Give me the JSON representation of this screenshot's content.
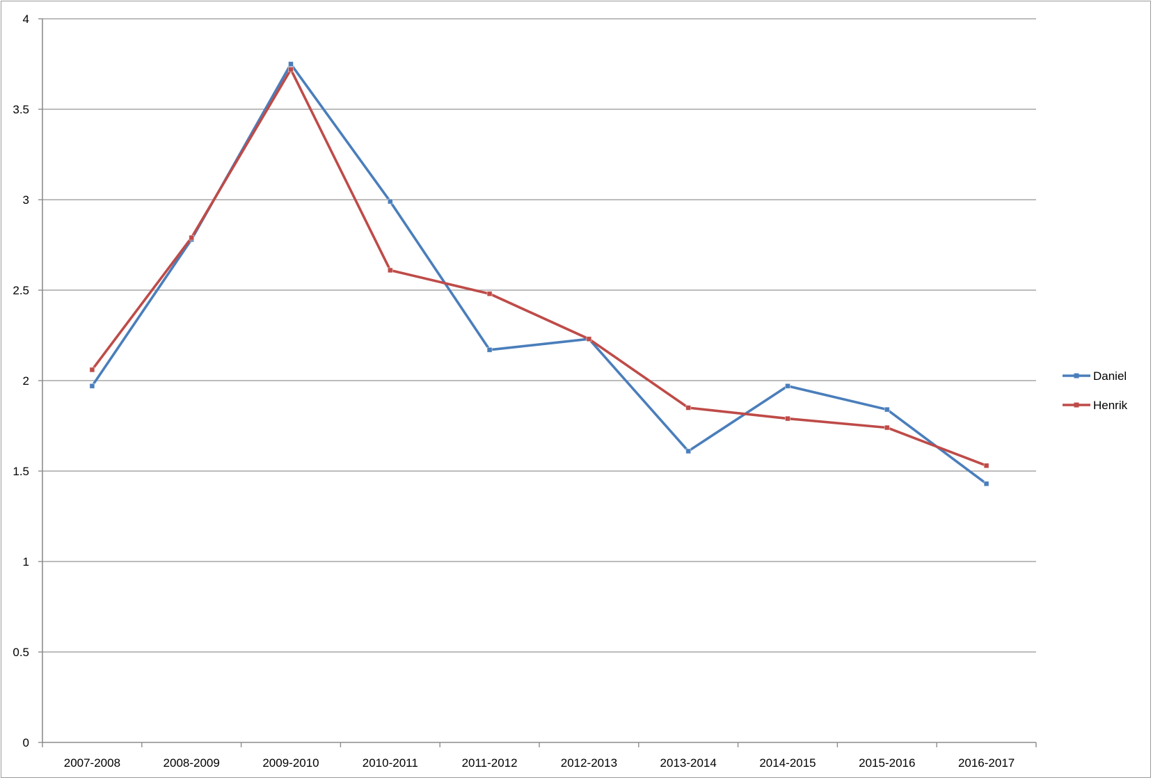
{
  "chart_data": {
    "type": "line",
    "title": "",
    "xlabel": "",
    "ylabel": "",
    "categories": [
      "2007-2008",
      "2008-2009",
      "2009-2010",
      "2010-2011",
      "2011-2012",
      "2012-2013",
      "2013-2014",
      "2014-2015",
      "2015-2016",
      "2016-2017"
    ],
    "y_ticks": [
      "0",
      "0.5",
      "1",
      "1.5",
      "2",
      "2.5",
      "3",
      "3.5",
      "4"
    ],
    "ylim": [
      0,
      4
    ],
    "grid": "horizontal",
    "legend_position": "right",
    "series": [
      {
        "name": "Daniel",
        "color": "#4a7ebb",
        "marker": "square",
        "values": [
          1.97,
          2.78,
          3.75,
          2.99,
          2.17,
          2.23,
          1.61,
          1.97,
          1.84,
          1.43
        ]
      },
      {
        "name": "Henrik",
        "color": "#be4b48",
        "marker": "square",
        "values": [
          2.06,
          2.79,
          3.72,
          2.61,
          2.48,
          2.23,
          1.85,
          1.79,
          1.74,
          1.53
        ]
      }
    ]
  }
}
